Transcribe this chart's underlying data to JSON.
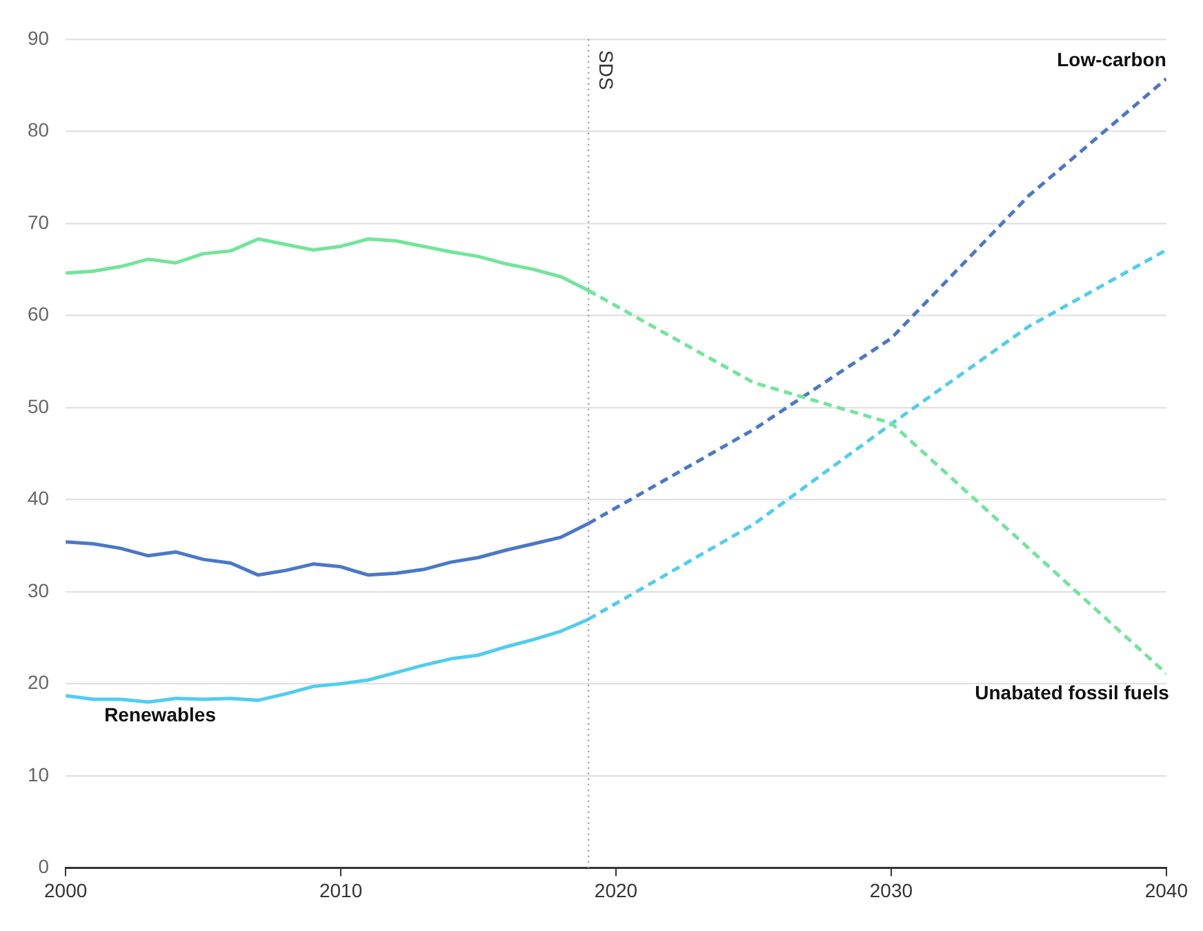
{
  "chart_data": {
    "type": "line",
    "x": [
      2000,
      2001,
      2002,
      2003,
      2004,
      2005,
      2006,
      2007,
      2008,
      2009,
      2010,
      2011,
      2012,
      2013,
      2014,
      2015,
      2016,
      2017,
      2018,
      2019
    ],
    "series": [
      {
        "color": "#72e59a",
        "values": [
          64.6,
          64.8,
          65.3,
          66.1,
          65.7,
          66.7,
          67.0,
          68.3,
          67.7,
          67.1,
          67.5,
          68.3,
          68.1,
          67.5,
          66.9,
          66.4,
          65.6,
          65.0,
          64.2,
          62.7
        ]
      },
      {
        "color": "#4a78c8",
        "values": [
          35.4,
          35.2,
          34.7,
          33.9,
          34.3,
          33.5,
          33.1,
          31.8,
          32.3,
          33.0,
          32.7,
          31.8,
          32.0,
          32.4,
          33.2,
          33.7,
          34.5,
          35.2,
          35.9,
          37.4
        ]
      },
      {
        "name": "Renewables",
        "color": "#4fcdf0",
        "values": [
          18.7,
          18.3,
          18.3,
          18.0,
          18.4,
          18.3,
          18.4,
          18.2,
          18.9,
          19.7,
          20.0,
          20.4,
          21.2,
          22.0,
          22.7,
          23.1,
          24.0,
          24.8,
          25.7,
          27.0
        ]
      },
      {
        "name": "Unabated fossil fuels",
        "color": "#72e59a",
        "line_style": "dashed",
        "x": [
          2019,
          2025,
          2030,
          2035,
          2040
        ],
        "values": [
          62.7,
          52.7,
          48.3,
          34.7,
          21.1
        ]
      },
      {
        "name": "Low-carbon",
        "color": "#4a78c8",
        "line_style": "dashed",
        "x": [
          2019,
          2025,
          2030,
          2035,
          2040
        ],
        "values": [
          37.4,
          47.6,
          57.5,
          73.0,
          85.7
        ]
      },
      {
        "color": "#4fcdf0",
        "line_style": "dashed",
        "x": [
          2019,
          2025,
          2030,
          2035,
          2040
        ],
        "values": [
          27.0,
          37.3,
          48.2,
          58.8,
          67.1
        ]
      }
    ],
    "xlim": [
      2000,
      2040
    ],
    "xticks": [
      2000,
      2010,
      2020,
      2030,
      2040
    ],
    "ylim": [
      0,
      90
    ],
    "yticks": [
      0,
      10,
      20,
      30,
      40,
      50,
      60,
      70,
      80,
      90
    ],
    "grid": "y",
    "legend": false,
    "marker": "none",
    "line_style": "solid",
    "ref_lines": [
      {
        "axis": "x",
        "value": 2019,
        "label": "SDS",
        "color": "#999999",
        "line_style": "dotted"
      }
    ]
  }
}
